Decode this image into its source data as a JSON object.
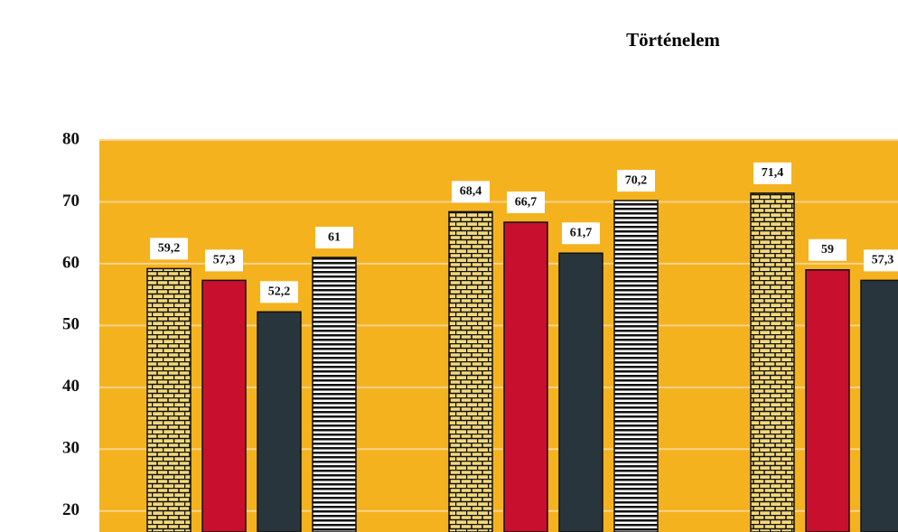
{
  "chart_data": {
    "type": "bar",
    "title": "Történelem",
    "categories": [
      null,
      null,
      null
    ],
    "series": [
      {
        "color": "#f4d97a",
        "pattern": "brick",
        "values": [
          59.2,
          68.4,
          71.4
        ],
        "value_labels": [
          "59,2",
          "68,4",
          "71,4"
        ]
      },
      {
        "color": "#c8102e",
        "values": [
          57.3,
          66.7,
          59
        ],
        "value_labels": [
          "57,3",
          "66,7",
          "59"
        ]
      },
      {
        "color": "#28353d",
        "values": [
          52.2,
          61.7,
          57.3
        ],
        "value_labels": [
          "52,2",
          "61,7",
          "57,3"
        ]
      },
      {
        "color": "#ffffff",
        "pattern": "hstripe",
        "values": [
          61,
          70.2,
          null
        ],
        "value_labels": [
          "61",
          "70,2",
          null
        ]
      }
    ],
    "ylim": [
      16.6,
      80
    ],
    "yticks": [
      20,
      30,
      40,
      50,
      60,
      70,
      80
    ],
    "grid": true,
    "plot_background": "#f5b21f"
  }
}
